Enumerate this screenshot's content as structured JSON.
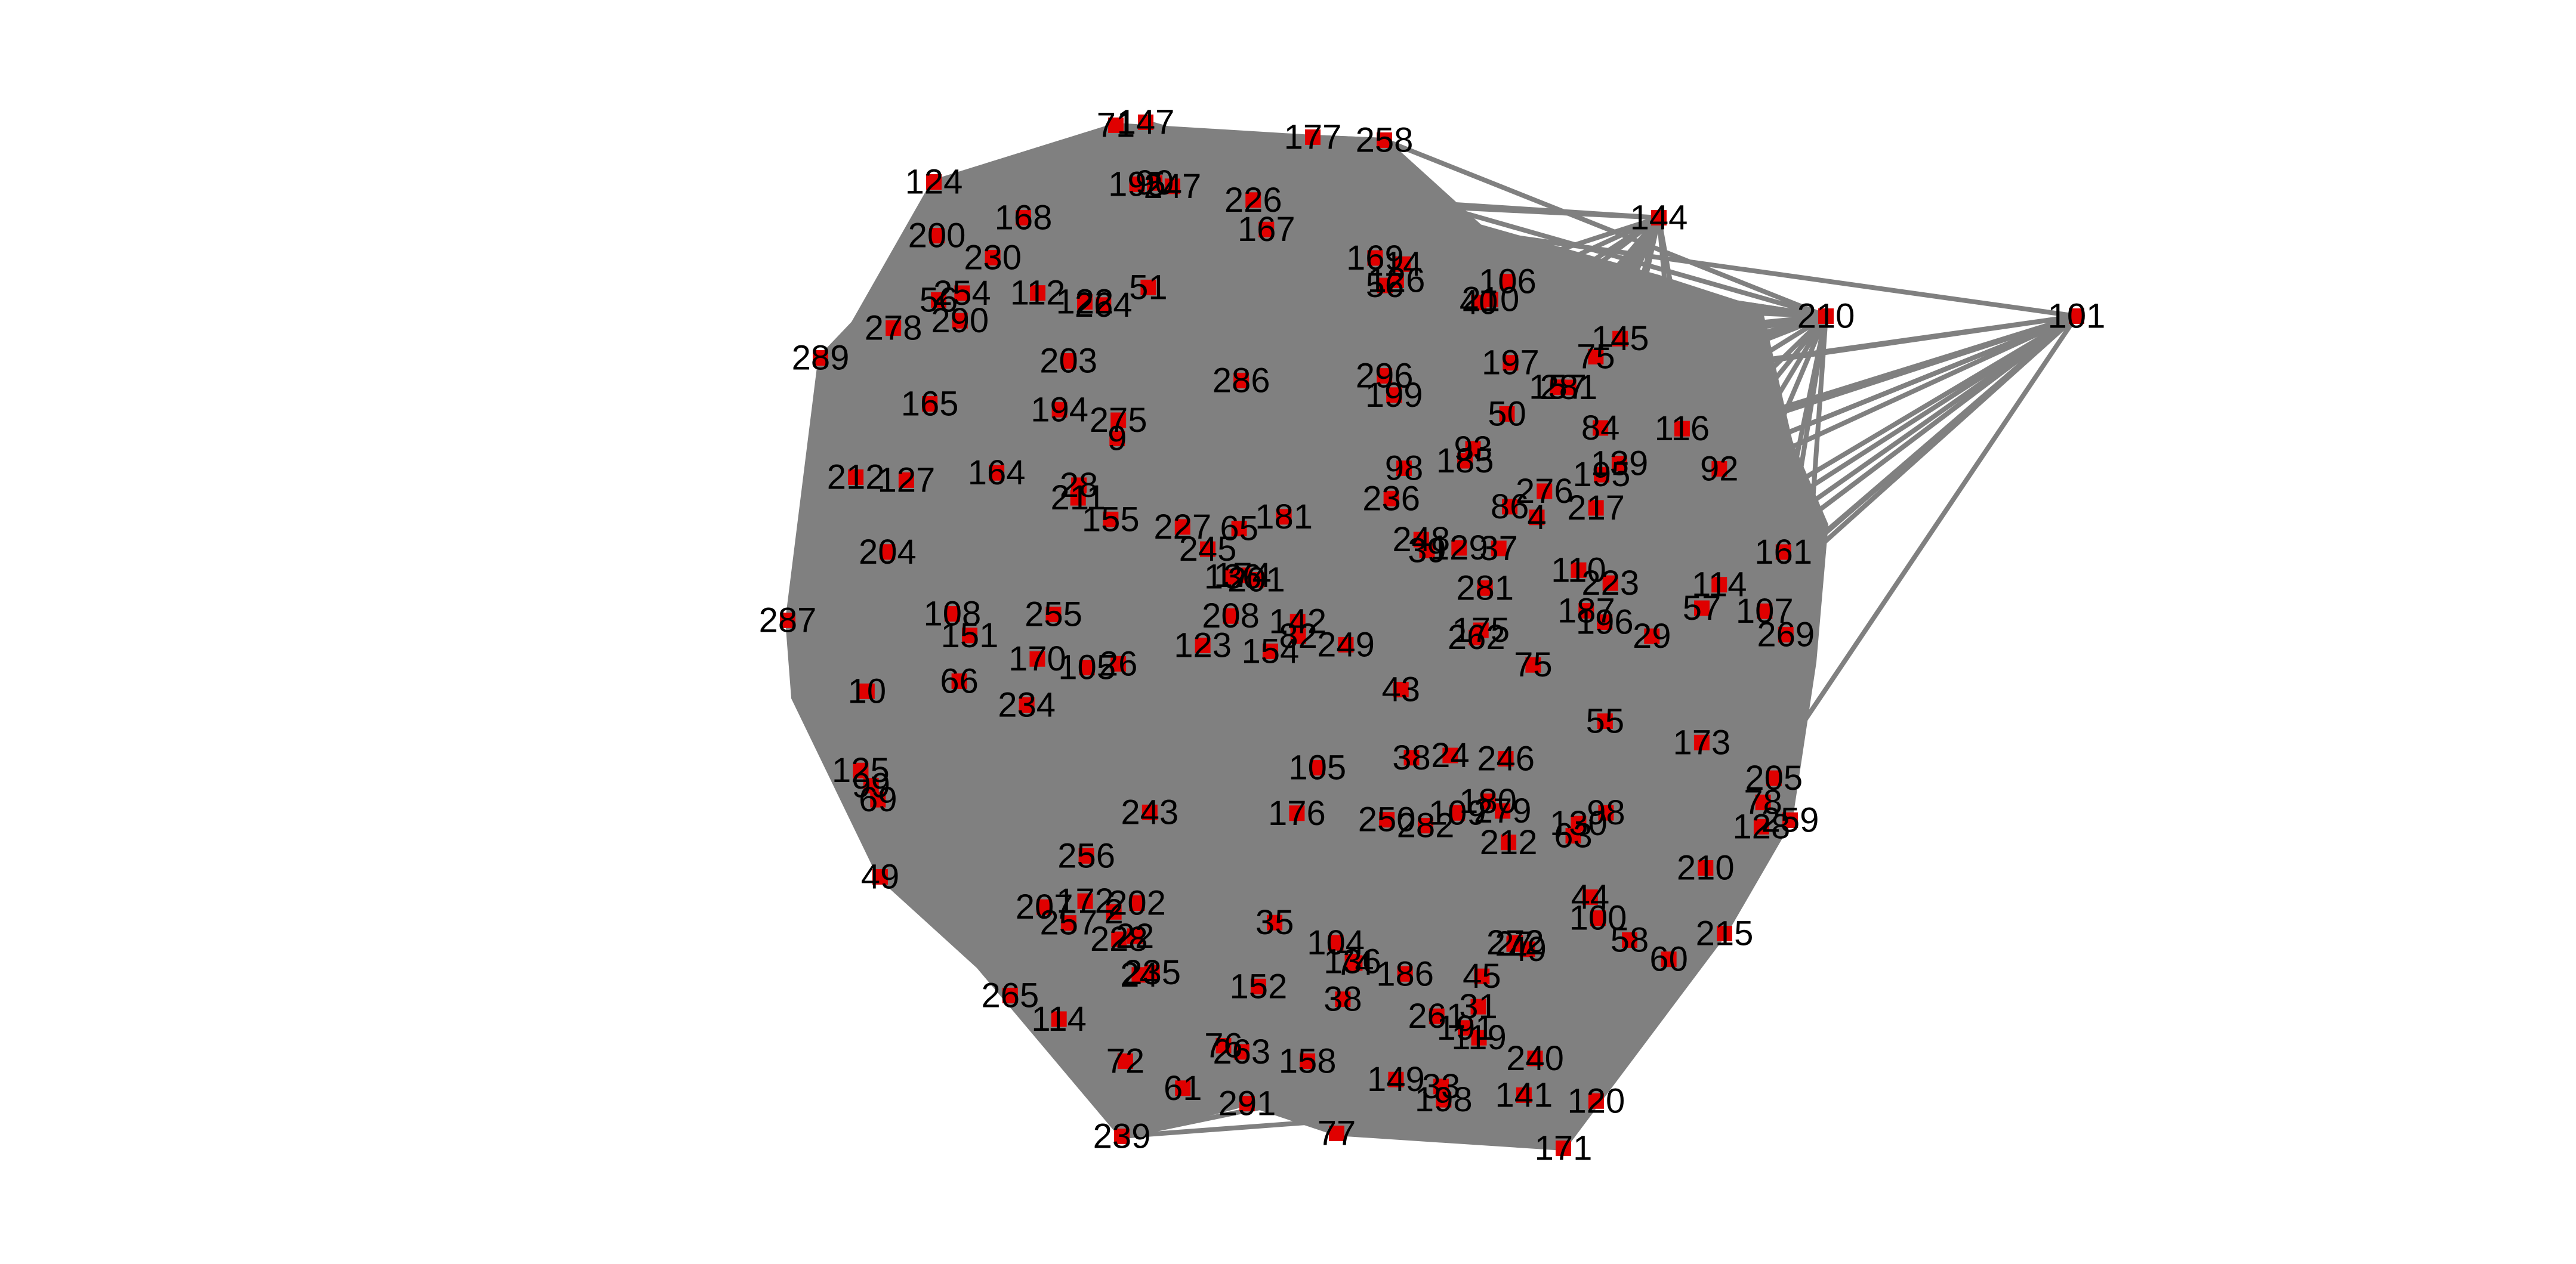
{
  "colors": {
    "edge": "#808080",
    "node": "#e00000",
    "label": "#000000",
    "background": "#ffffff"
  },
  "diagram": {
    "type": "network-graph",
    "node_labels": [
      "71",
      "147",
      "177",
      "258",
      "124",
      "144",
      "101",
      "185",
      "198",
      "180",
      "265",
      "27",
      "276",
      "75",
      "199",
      "207",
      "60",
      "108",
      "4",
      "155",
      "174",
      "145",
      "164",
      "123",
      "107",
      "157",
      "152",
      "139",
      "136",
      "126",
      "200",
      "289",
      "287",
      "49",
      "239",
      "291",
      "77",
      "171",
      "215",
      "259",
      "210",
      "106",
      "14",
      "37",
      "50",
      "245",
      "263",
      "226",
      "122",
      "9",
      "286",
      "196",
      "74",
      "282",
      "10",
      "154",
      "93",
      "158",
      "170",
      "173",
      "125",
      "129",
      "98",
      "2",
      "269",
      "234",
      "45",
      "250",
      "165",
      "35",
      "24",
      "257",
      "136",
      "212",
      "272",
      "120",
      "186",
      "195",
      "105",
      "109",
      "175",
      "191",
      "210",
      "296",
      "281",
      "243",
      "227",
      "28",
      "66",
      "128",
      "104",
      "195",
      "142",
      "247",
      "248",
      "56",
      "254",
      "63",
      "86",
      "255",
      "92",
      "61",
      "194",
      "149",
      "256",
      "22",
      "26",
      "75",
      "279",
      "264",
      "151",
      "181",
      "246",
      "236",
      "201",
      "98",
      "39",
      "116",
      "204",
      "76",
      "65",
      "72",
      "141",
      "187",
      "31",
      "202",
      "38",
      "169",
      "210",
      "99",
      "228",
      "240",
      "38",
      "112",
      "114",
      "84",
      "235",
      "130",
      "197",
      "58",
      "281",
      "230",
      "211",
      "82",
      "127",
      "261",
      "168",
      "172",
      "105",
      "56",
      "223",
      "24",
      "51",
      "43",
      "110",
      "100",
      "203",
      "119",
      "208",
      "78",
      "176",
      "249",
      "212",
      "275",
      "278",
      "29",
      "90",
      "55",
      "49",
      "205",
      "40",
      "217",
      "262",
      "57",
      "69",
      "290",
      "161",
      "167",
      "114",
      "33",
      "44"
    ]
  }
}
